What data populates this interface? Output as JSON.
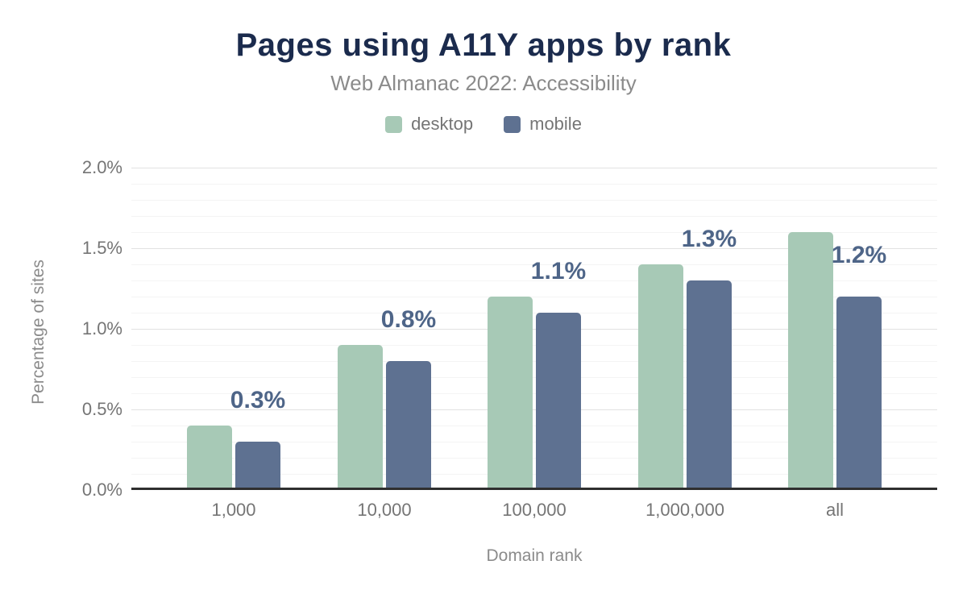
{
  "header": {
    "title": "Pages using A11Y apps by rank",
    "subtitle": "Web Almanac 2022: Accessibility"
  },
  "chart_data": {
    "type": "bar",
    "title": "Pages using A11Y apps by rank",
    "subtitle": "Web Almanac 2022: Accessibility",
    "xlabel": "Domain rank",
    "ylabel": "Percentage of sites",
    "categories": [
      "1,000",
      "10,000",
      "100,000",
      "1,000,000",
      "all"
    ],
    "series": [
      {
        "name": "desktop",
        "color": "#a7c9b6",
        "values": [
          0.4,
          0.9,
          1.2,
          1.4,
          1.6
        ]
      },
      {
        "name": "mobile",
        "color": "#5e7191",
        "values": [
          0.3,
          0.8,
          1.1,
          1.3,
          1.2
        ]
      }
    ],
    "data_labels": {
      "on_series": "mobile",
      "values": [
        "0.3%",
        "0.8%",
        "1.1%",
        "1.3%",
        "1.2%"
      ],
      "color": "#4e6588"
    },
    "ylim": [
      0,
      2
    ],
    "yticks": [
      {
        "value": 0,
        "label": "0.0%"
      },
      {
        "value": 0.5,
        "label": "0.5%"
      },
      {
        "value": 1,
        "label": "1.0%"
      },
      {
        "value": 1.5,
        "label": "1.5%"
      },
      {
        "value": 2,
        "label": "2.0%"
      }
    ],
    "minor_grid_step": 0.1,
    "grid": "horizontal",
    "legend_position": "top"
  },
  "colors": {
    "background": "#ffffff",
    "title": "#1b2b4d",
    "subtitle": "#8b8b8b",
    "axis_text": "#757575",
    "axis_line": "#2f2f2f",
    "grid_major": "#e2e2e2",
    "grid_minor": "#f4f4f4",
    "value_label": "#4e6588"
  }
}
